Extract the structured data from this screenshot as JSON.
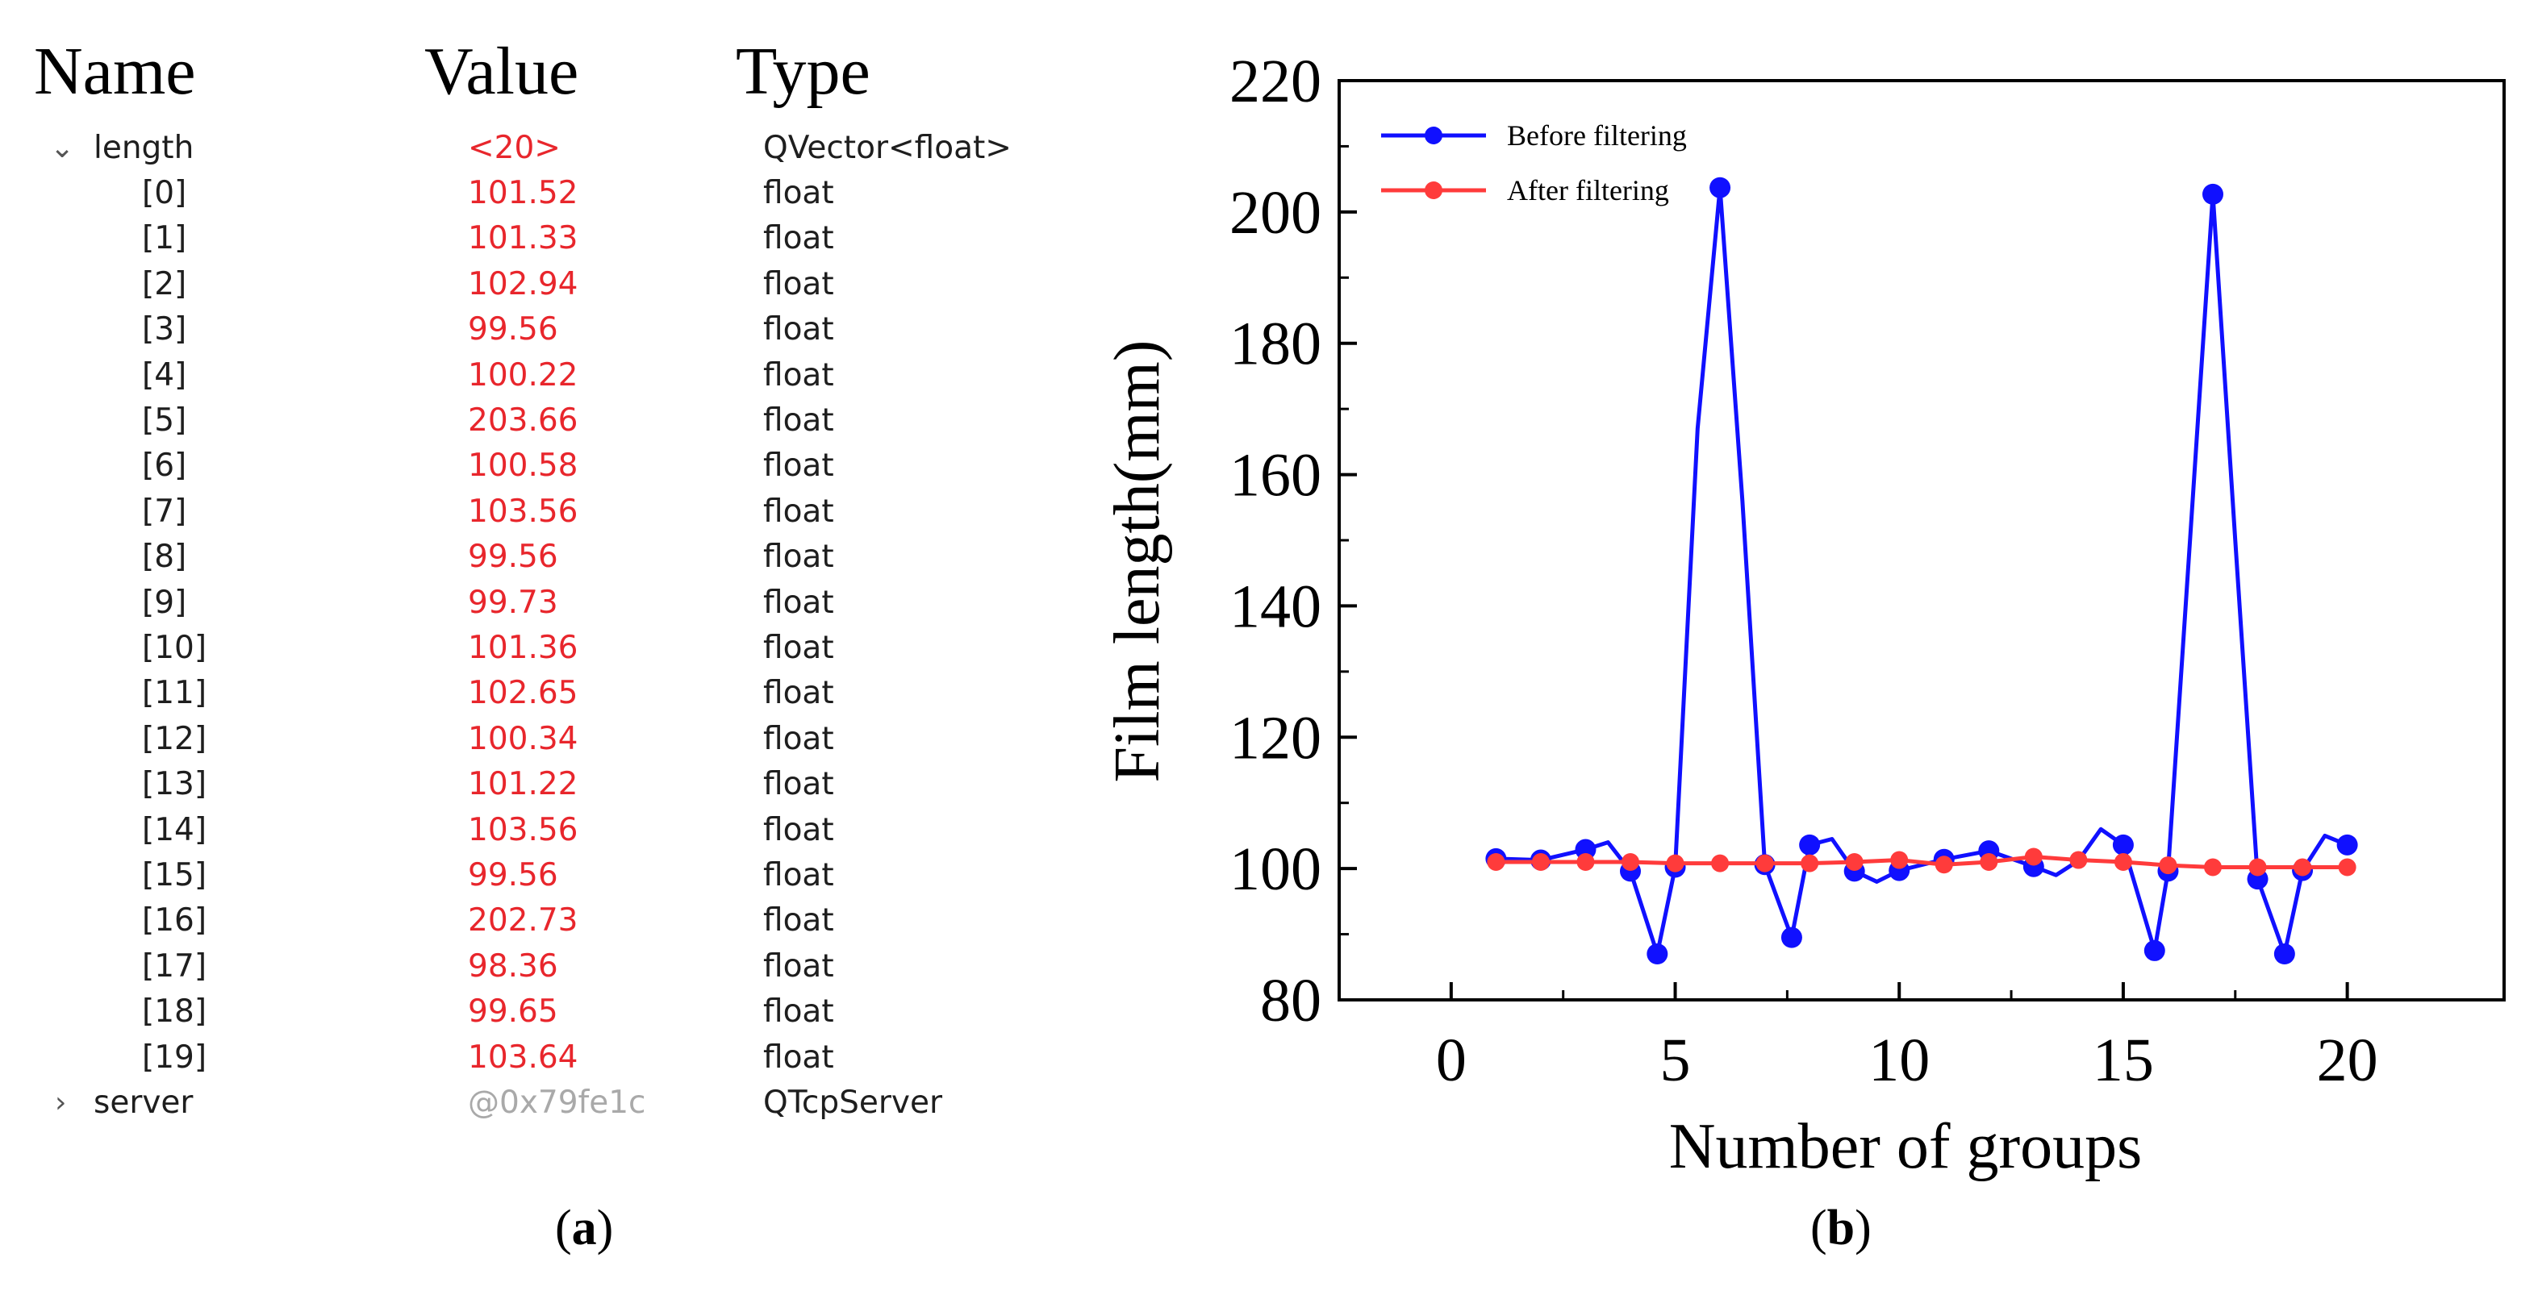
{
  "panel_a": {
    "headers": {
      "name": "Name",
      "value": "Value",
      "type": "Type"
    },
    "parent": {
      "name": "length",
      "value": "<20>",
      "type": "QVector<float>"
    },
    "rows": [
      {
        "name": "[0]",
        "value": "101.52",
        "type": "float"
      },
      {
        "name": "[1]",
        "value": "101.33",
        "type": "float"
      },
      {
        "name": "[2]",
        "value": "102.94",
        "type": "float"
      },
      {
        "name": "[3]",
        "value": "99.56",
        "type": "float"
      },
      {
        "name": "[4]",
        "value": "100.22",
        "type": "float"
      },
      {
        "name": "[5]",
        "value": "203.66",
        "type": "float"
      },
      {
        "name": "[6]",
        "value": "100.58",
        "type": "float"
      },
      {
        "name": "[7]",
        "value": "103.56",
        "type": "float"
      },
      {
        "name": "[8]",
        "value": "99.56",
        "type": "float"
      },
      {
        "name": "[9]",
        "value": "99.73",
        "type": "float"
      },
      {
        "name": "[10]",
        "value": "101.36",
        "type": "float"
      },
      {
        "name": "[11]",
        "value": "102.65",
        "type": "float"
      },
      {
        "name": "[12]",
        "value": "100.34",
        "type": "float"
      },
      {
        "name": "[13]",
        "value": "101.22",
        "type": "float"
      },
      {
        "name": "[14]",
        "value": "103.56",
        "type": "float"
      },
      {
        "name": "[15]",
        "value": "99.56",
        "type": "float"
      },
      {
        "name": "[16]",
        "value": "202.73",
        "type": "float"
      },
      {
        "name": "[17]",
        "value": "98.36",
        "type": "float"
      },
      {
        "name": "[18]",
        "value": "99.65",
        "type": "float"
      },
      {
        "name": "[19]",
        "value": "103.64",
        "type": "float"
      }
    ],
    "server": {
      "name": "server",
      "value": "@0x79fe1c",
      "type": "QTcpServer"
    },
    "caption_open": "(",
    "caption_letter": "a",
    "caption_close": ")"
  },
  "panel_b": {
    "caption_open": "(",
    "caption_letter": "b",
    "caption_close": ")"
  },
  "chart_data": {
    "type": "line",
    "xlabel": "Number of groups",
    "ylabel": "Film length(mm)",
    "xlim": [
      -2.5,
      23.5
    ],
    "ylim": [
      80,
      220
    ],
    "xticks": [
      0,
      5,
      10,
      15,
      20
    ],
    "yticks": [
      80,
      100,
      120,
      140,
      160,
      180,
      200,
      220
    ],
    "legend_position": "top-left",
    "series": [
      {
        "name": "Before filtering",
        "color": "#1010ff",
        "x": [
          1,
          2,
          3,
          3.5,
          4,
          4.6,
          5,
          5.5,
          6,
          6.5,
          7,
          7.6,
          8,
          8.5,
          9,
          9.5,
          10,
          11,
          12,
          13,
          13.5,
          14,
          14.5,
          15,
          15.7,
          16,
          16.5,
          17,
          17.5,
          18,
          18.6,
          19,
          19.5,
          20
        ],
        "y": [
          101.5,
          101.3,
          102.9,
          104,
          99.6,
          87,
          100.2,
          167,
          203.7,
          156,
          100.6,
          89.5,
          103.6,
          104.5,
          99.6,
          98,
          99.7,
          101.4,
          102.7,
          100.3,
          99,
          101.2,
          106,
          103.6,
          87.5,
          99.6,
          151,
          202.7,
          150,
          98.4,
          87,
          99.7,
          105,
          103.6
        ],
        "markers": [
          1,
          2,
          3,
          4,
          4.6,
          5,
          6,
          7,
          7.6,
          8,
          9,
          10,
          11,
          12,
          13,
          15,
          15.7,
          16,
          17,
          18,
          18.6,
          19,
          20
        ]
      },
      {
        "name": "After filtering",
        "color": "#ff3b3b",
        "x": [
          1,
          2,
          3,
          4,
          5,
          6,
          7,
          8,
          9,
          10,
          11,
          12,
          13,
          14,
          15,
          16,
          17,
          18,
          19,
          20
        ],
        "y": [
          101.0,
          101.0,
          101.0,
          101.0,
          100.8,
          100.8,
          100.8,
          100.8,
          101.0,
          101.3,
          100.6,
          101.0,
          101.8,
          101.3,
          101.0,
          100.5,
          100.2,
          100.2,
          100.2,
          100.2
        ]
      }
    ]
  }
}
